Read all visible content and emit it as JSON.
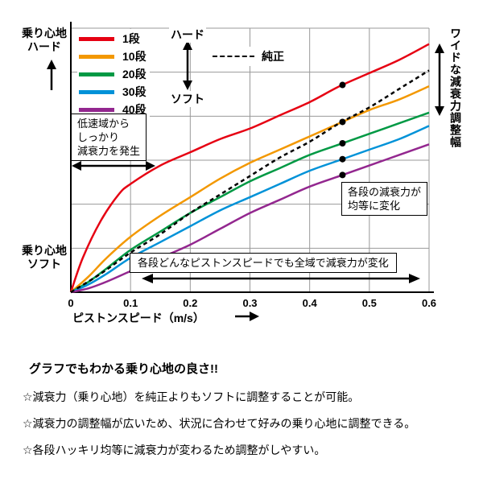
{
  "chart_data": {
    "type": "line",
    "title": "",
    "xlabel": "ピストンスピード（m/s）",
    "ylabel_top": "乗り心地\nハード",
    "ylabel_bottom": "乗り心地\nソフト",
    "right_axis_label": "ワイドな減衰力調整幅",
    "xlim": [
      0,
      0.6
    ],
    "ylim": [
      0,
      100
    ],
    "xticks": [
      0,
      0.1,
      0.2,
      0.3,
      0.4,
      0.5,
      0.6
    ],
    "xtick_labels": [
      "0",
      "0.1",
      "0.2",
      "0.3",
      "0.4",
      "0.5",
      "0.6"
    ],
    "grid": true,
    "h_divisions": 6,
    "legend_hard_soft": {
      "hard": "ハード",
      "soft": "ソフト"
    },
    "series": [
      {
        "name": "1段",
        "color": "#e60012",
        "style": "solid",
        "points": [
          [
            0,
            0
          ],
          [
            0.02,
            13
          ],
          [
            0.05,
            27
          ],
          [
            0.08,
            37
          ],
          [
            0.1,
            41
          ],
          [
            0.15,
            48
          ],
          [
            0.2,
            53
          ],
          [
            0.25,
            58
          ],
          [
            0.3,
            62
          ],
          [
            0.35,
            67
          ],
          [
            0.4,
            72
          ],
          [
            0.45,
            78
          ],
          [
            0.5,
            83
          ],
          [
            0.55,
            88
          ],
          [
            0.6,
            94
          ]
        ]
      },
      {
        "name": "10段",
        "color": "#f39800",
        "style": "solid",
        "points": [
          [
            0,
            0
          ],
          [
            0.03,
            6
          ],
          [
            0.06,
            13
          ],
          [
            0.1,
            21
          ],
          [
            0.15,
            29
          ],
          [
            0.2,
            36
          ],
          [
            0.25,
            43
          ],
          [
            0.3,
            49
          ],
          [
            0.35,
            54
          ],
          [
            0.4,
            59
          ],
          [
            0.45,
            64
          ],
          [
            0.5,
            69
          ],
          [
            0.55,
            73
          ],
          [
            0.6,
            78
          ]
        ]
      },
      {
        "name": "20段",
        "color": "#009944",
        "style": "solid",
        "points": [
          [
            0,
            0
          ],
          [
            0.03,
            4
          ],
          [
            0.06,
            9
          ],
          [
            0.1,
            16
          ],
          [
            0.15,
            23
          ],
          [
            0.2,
            30
          ],
          [
            0.25,
            36
          ],
          [
            0.3,
            42
          ],
          [
            0.35,
            47
          ],
          [
            0.4,
            52
          ],
          [
            0.45,
            56
          ],
          [
            0.5,
            60
          ],
          [
            0.55,
            64
          ],
          [
            0.6,
            68
          ]
        ]
      },
      {
        "name": "30段",
        "color": "#0092d8",
        "style": "solid",
        "points": [
          [
            0,
            0
          ],
          [
            0.03,
            3
          ],
          [
            0.06,
            7
          ],
          [
            0.1,
            13
          ],
          [
            0.15,
            19
          ],
          [
            0.2,
            25
          ],
          [
            0.25,
            31
          ],
          [
            0.3,
            36
          ],
          [
            0.35,
            41
          ],
          [
            0.4,
            46
          ],
          [
            0.45,
            50
          ],
          [
            0.5,
            54
          ],
          [
            0.55,
            58
          ],
          [
            0.6,
            63
          ]
        ]
      },
      {
        "name": "40段",
        "color": "#93278f",
        "style": "solid",
        "points": [
          [
            0,
            0
          ],
          [
            0.03,
            1.5
          ],
          [
            0.06,
            4
          ],
          [
            0.1,
            8
          ],
          [
            0.15,
            13
          ],
          [
            0.2,
            18
          ],
          [
            0.25,
            24
          ],
          [
            0.3,
            30
          ],
          [
            0.35,
            35
          ],
          [
            0.4,
            40
          ],
          [
            0.45,
            44
          ],
          [
            0.5,
            48
          ],
          [
            0.55,
            52
          ],
          [
            0.6,
            56
          ]
        ]
      },
      {
        "name": "純正",
        "color": "#000000",
        "style": "dashed",
        "points": [
          [
            0,
            0
          ],
          [
            0.05,
            7
          ],
          [
            0.1,
            15
          ],
          [
            0.15,
            22
          ],
          [
            0.2,
            30
          ],
          [
            0.25,
            37
          ],
          [
            0.3,
            44
          ],
          [
            0.35,
            51
          ],
          [
            0.4,
            57
          ],
          [
            0.45,
            64
          ],
          [
            0.5,
            70
          ],
          [
            0.55,
            77
          ],
          [
            0.6,
            84
          ]
        ]
      }
    ],
    "dot_markers": {
      "x": 0.455,
      "color": "#000000",
      "on_series": [
        "1段",
        "10段",
        "20段",
        "30段",
        "40段"
      ]
    },
    "annotations": [
      {
        "text": "低速域から\nしっかり\n減衰力を発生"
      },
      {
        "text": "各段の減衰力が\n均等に変化"
      },
      {
        "text": "各段どんなピストンスピードでも全域で減衰力が変化"
      }
    ]
  },
  "footer": {
    "heading": "グラフでもわかる乗り心地の良さ!!",
    "bullets": [
      "☆減衰力（乗り心地）を純正よりもソフトに調整することが可能。",
      "☆減衰力の調整幅が広いため、状況に合わせて好みの乗り心地に調整できる。",
      "☆各段ハッキリ均等に減衰力が変わるため調整がしやすい。"
    ]
  }
}
